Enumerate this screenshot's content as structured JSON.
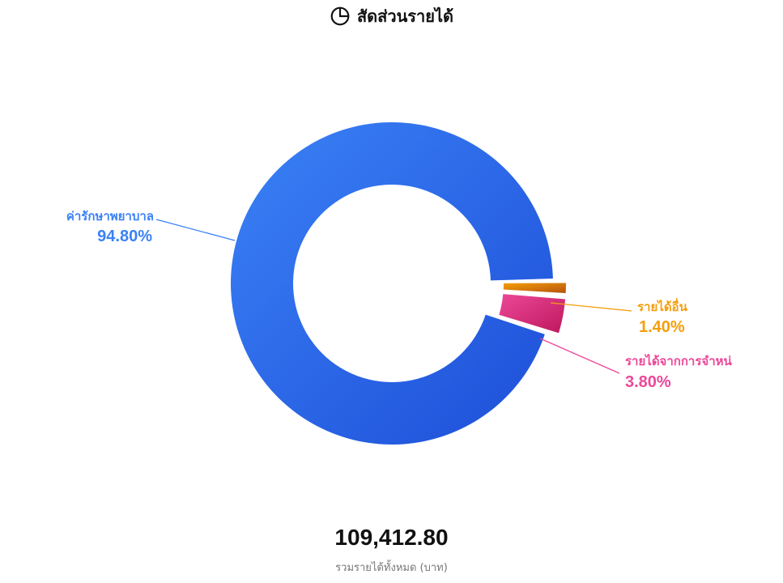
{
  "header": {
    "title": "สัดส่วนรายได้",
    "icon": "pie-chart-icon"
  },
  "chart_data": {
    "type": "pie",
    "variant": "donut",
    "slices": [
      {
        "label": "ค่ารักษาพยาบาล",
        "percent_label": "94.80%",
        "value": 94.8,
        "color": "#2f6fe8",
        "gradient": [
          "#3b82f6",
          "#1d4ed8"
        ]
      },
      {
        "label": "รายได้อื่น",
        "percent_label": "1.40%",
        "value": 1.4,
        "color": "#d97706",
        "gradient": [
          "#f59e0b",
          "#b45309"
        ]
      },
      {
        "label": "รายได้จากการจำหน่",
        "percent_label": "3.80%",
        "value": 3.8,
        "color": "#db2777",
        "gradient": [
          "#ec4899",
          "#be185d"
        ]
      }
    ],
    "label_colors": [
      "#3b82f6",
      "#f59e0b",
      "#ec4899"
    ]
  },
  "summary": {
    "total_value": "109,412.80",
    "total_label": "รวมรายได้ทั้งหมด (บาท)"
  }
}
